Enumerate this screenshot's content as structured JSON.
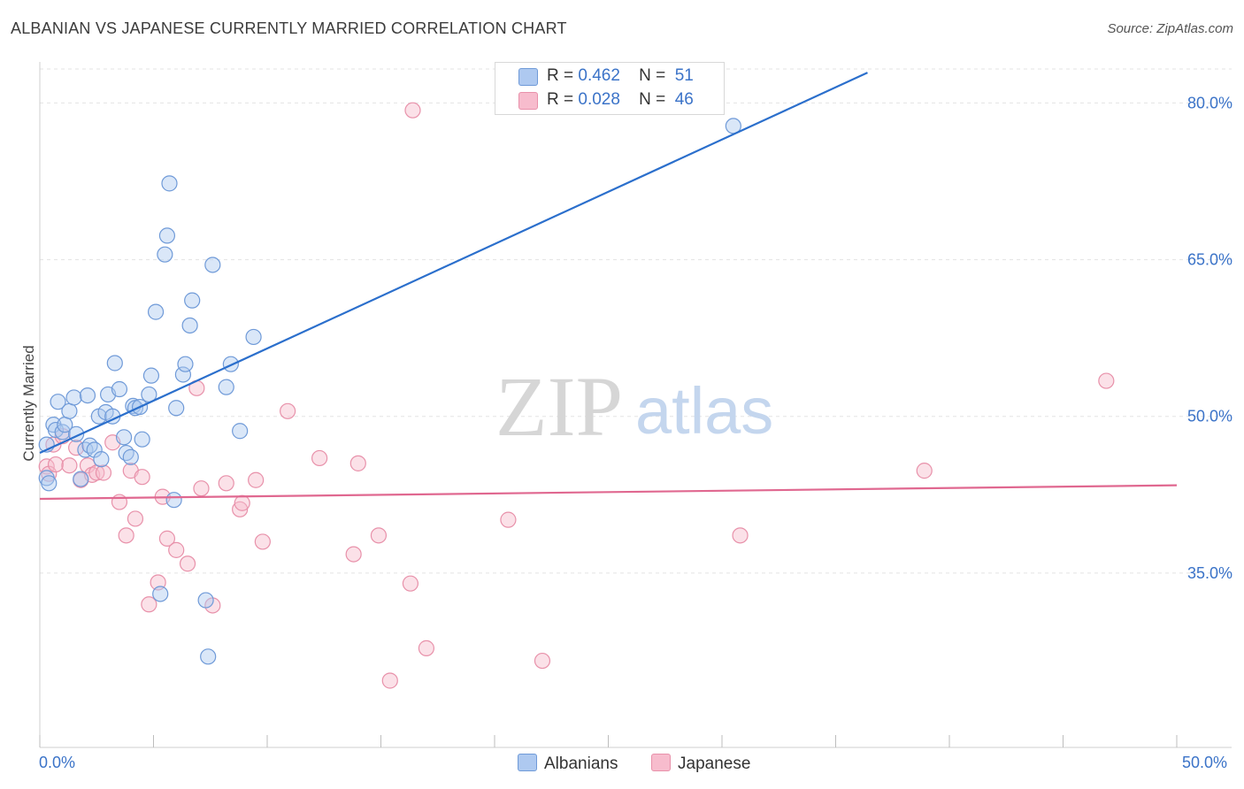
{
  "header": {
    "title": "ALBANIAN VS JAPANESE CURRENTLY MARRIED CORRELATION CHART",
    "source": "Source: ZipAtlas.com"
  },
  "watermark": {
    "zip": "ZIP",
    "atlas": "atlas"
  },
  "legend": {
    "rows": [
      {
        "r_label": "R =",
        "r_value": "0.462",
        "n_label": "N =",
        "n_value": "51"
      },
      {
        "r_label": "R =",
        "r_value": "0.028",
        "n_label": "N =",
        "n_value": "46"
      }
    ]
  },
  "bottom_legend": {
    "albanians": "Albanians",
    "japanese": "Japanese"
  },
  "colors": {
    "blue_fill": "#aec9f0",
    "blue_stroke": "#6f9ad8",
    "blue_line": "#2b6fcc",
    "pink_fill": "#f7bccd",
    "pink_stroke": "#e891aa",
    "pink_line": "#e06890",
    "axis_text": "#3b73c8",
    "grid": "#e3e3e3"
  },
  "chart_data": {
    "type": "scatter",
    "title": "ALBANIAN VS JAPANESE CURRENTLY MARRIED CORRELATION CHART",
    "xlabel": "",
    "ylabel": "Currently Married",
    "xlim": [
      0,
      50
    ],
    "ylim": [
      20,
      83
    ],
    "x_tick_labels": [
      "0.0%",
      "50.0%"
    ],
    "y_ticks": [
      35,
      50,
      65,
      80
    ],
    "y_tick_labels": [
      "35.0%",
      "50.0%",
      "65.0%",
      "80.0%"
    ],
    "series": [
      {
        "name": "Albanians",
        "r": 0.462,
        "n": 51,
        "trend": [
          [
            0,
            46.5
          ],
          [
            36.4,
            82.9
          ]
        ],
        "points": [
          [
            0.3,
            44.1
          ],
          [
            0.4,
            43.6
          ],
          [
            0.3,
            47.3
          ],
          [
            0.6,
            49.2
          ],
          [
            0.7,
            48.7
          ],
          [
            0.8,
            51.4
          ],
          [
            1.0,
            48.5
          ],
          [
            1.1,
            49.2
          ],
          [
            1.3,
            50.5
          ],
          [
            1.5,
            51.8
          ],
          [
            1.6,
            48.3
          ],
          [
            1.8,
            44.0
          ],
          [
            2.0,
            46.8
          ],
          [
            2.1,
            52.0
          ],
          [
            2.2,
            47.2
          ],
          [
            2.4,
            46.8
          ],
          [
            2.6,
            50.0
          ],
          [
            2.7,
            45.9
          ],
          [
            2.9,
            50.4
          ],
          [
            3.0,
            52.1
          ],
          [
            3.2,
            50.0
          ],
          [
            3.3,
            55.1
          ],
          [
            3.5,
            52.6
          ],
          [
            3.7,
            48.0
          ],
          [
            3.8,
            46.5
          ],
          [
            4.0,
            46.1
          ],
          [
            4.1,
            51.0
          ],
          [
            4.2,
            50.8
          ],
          [
            4.4,
            50.9
          ],
          [
            4.5,
            47.8
          ],
          [
            4.8,
            52.1
          ],
          [
            4.9,
            53.9
          ],
          [
            5.1,
            60.0
          ],
          [
            5.3,
            33.0
          ],
          [
            5.5,
            65.5
          ],
          [
            5.6,
            67.3
          ],
          [
            5.7,
            72.3
          ],
          [
            5.9,
            42.0
          ],
          [
            6.0,
            50.8
          ],
          [
            6.3,
            54.0
          ],
          [
            6.4,
            55.0
          ],
          [
            6.6,
            58.7
          ],
          [
            6.7,
            61.1
          ],
          [
            7.3,
            32.4
          ],
          [
            7.4,
            27.0
          ],
          [
            7.6,
            64.5
          ],
          [
            8.2,
            52.8
          ],
          [
            8.4,
            55.0
          ],
          [
            8.8,
            48.6
          ],
          [
            9.4,
            57.6
          ],
          [
            30.5,
            77.8
          ]
        ]
      },
      {
        "name": "Japanese",
        "r": 0.028,
        "n": 46,
        "trend": [
          [
            0,
            42.1
          ],
          [
            50,
            43.4
          ]
        ],
        "points": [
          [
            0.3,
            45.2
          ],
          [
            0.4,
            44.5
          ],
          [
            0.6,
            47.3
          ],
          [
            0.7,
            45.4
          ],
          [
            1.0,
            48.1
          ],
          [
            1.3,
            45.3
          ],
          [
            1.6,
            47.0
          ],
          [
            1.8,
            43.9
          ],
          [
            2.1,
            45.3
          ],
          [
            2.3,
            44.4
          ],
          [
            2.5,
            44.6
          ],
          [
            2.8,
            44.6
          ],
          [
            3.2,
            47.5
          ],
          [
            3.5,
            41.8
          ],
          [
            3.8,
            38.6
          ],
          [
            4.0,
            44.8
          ],
          [
            4.2,
            40.2
          ],
          [
            4.5,
            44.2
          ],
          [
            4.8,
            32.0
          ],
          [
            5.2,
            34.1
          ],
          [
            5.4,
            42.3
          ],
          [
            5.6,
            38.3
          ],
          [
            6.0,
            37.2
          ],
          [
            6.5,
            35.9
          ],
          [
            6.9,
            52.7
          ],
          [
            7.1,
            43.1
          ],
          [
            7.6,
            31.9
          ],
          [
            8.2,
            43.6
          ],
          [
            8.8,
            41.1
          ],
          [
            8.9,
            41.7
          ],
          [
            9.5,
            43.9
          ],
          [
            9.8,
            38.0
          ],
          [
            10.9,
            50.5
          ],
          [
            12.3,
            46.0
          ],
          [
            13.8,
            36.8
          ],
          [
            14.0,
            45.5
          ],
          [
            14.9,
            38.6
          ],
          [
            15.4,
            24.7
          ],
          [
            16.3,
            34.0
          ],
          [
            16.4,
            79.3
          ],
          [
            17.0,
            27.8
          ],
          [
            20.6,
            40.1
          ],
          [
            22.1,
            26.6
          ],
          [
            30.8,
            38.6
          ],
          [
            38.9,
            44.8
          ],
          [
            46.9,
            53.4
          ]
        ]
      }
    ]
  }
}
